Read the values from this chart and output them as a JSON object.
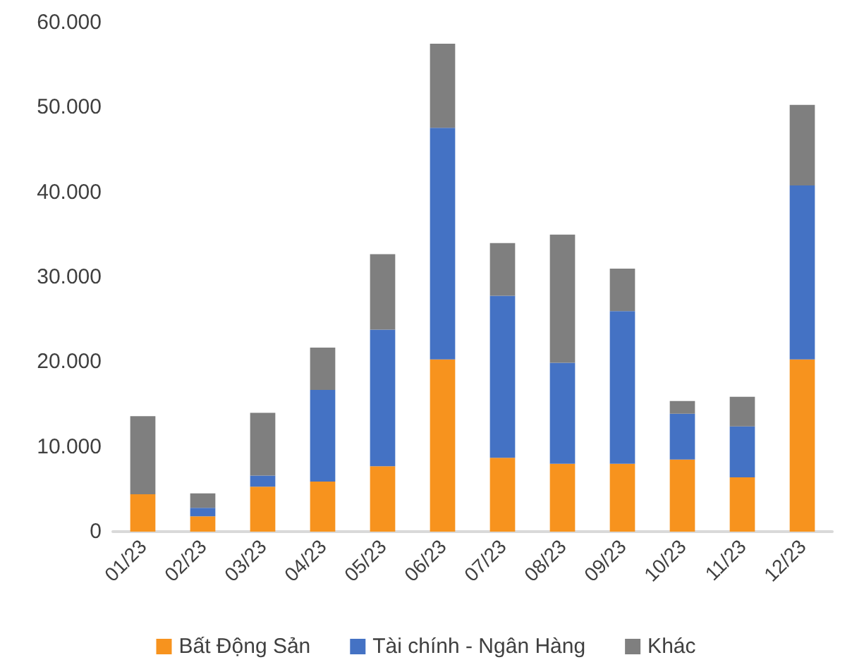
{
  "chart_data": {
    "type": "bar",
    "stacked": true,
    "categories": [
      "01/23",
      "02/23",
      "03/23",
      "04/23",
      "05/23",
      "06/23",
      "07/23",
      "08/23",
      "09/23",
      "10/23",
      "11/23",
      "12/23"
    ],
    "series": [
      {
        "name": "Bất Động Sản",
        "color": "#f7931e",
        "values": [
          4400,
          1800,
          5300,
          5900,
          7700,
          20300,
          8700,
          8000,
          8000,
          8500,
          6400,
          20300
        ]
      },
      {
        "name": "Tài chính - Ngân Hàng",
        "color": "#4472c4",
        "values": [
          0,
          1000,
          1300,
          10800,
          16100,
          27300,
          19100,
          11900,
          18000,
          5400,
          6000,
          20500
        ]
      },
      {
        "name": "Khác",
        "color": "#7f7f7f",
        "values": [
          9200,
          1700,
          7400,
          5000,
          8900,
          9900,
          6200,
          15100,
          5000,
          1500,
          3500,
          9500
        ]
      }
    ],
    "ylim": [
      0,
      60000
    ],
    "yticks": [
      {
        "value": 0,
        "label": "0"
      },
      {
        "value": 10000,
        "label": "10.000"
      },
      {
        "value": 20000,
        "label": "20.000"
      },
      {
        "value": 30000,
        "label": "30.000"
      },
      {
        "value": 40000,
        "label": "40.000"
      },
      {
        "value": 50000,
        "label": "50.000"
      },
      {
        "value": 60000,
        "label": "60.000"
      }
    ],
    "grid": false,
    "legend": "bottom"
  }
}
